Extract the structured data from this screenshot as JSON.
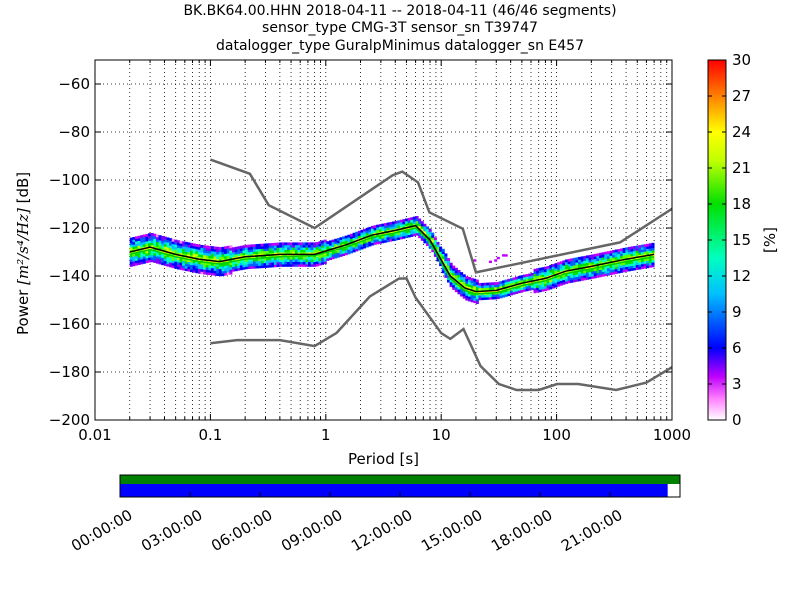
{
  "title": {
    "line1": "BK.BK64.00.HHN   2018-04-11 -- 2018-04-11  (46/46 segments)",
    "line2": "sensor_type CMG-3T sensor_sn T39747",
    "line3": "datalogger_type GuralpMinimus datalogger_sn E457"
  },
  "colorbar": {
    "label": "[%]",
    "ticks": [
      "0",
      "3",
      "6",
      "9",
      "12",
      "15",
      "18",
      "21",
      "24",
      "27",
      "30"
    ],
    "range": [
      0,
      30
    ]
  },
  "chart_data": {
    "type": "heatmap",
    "xlabel": "Period [s]",
    "ylabel_prefix": "Power ",
    "ylabel_unit": "[m²/s⁴/Hz]",
    "ylabel_suffix": " [dB]",
    "xscale": "log",
    "xlim": [
      0.01,
      1000
    ],
    "ylim": [
      -200,
      -50
    ],
    "xticks": [
      {
        "v": 0.01,
        "label": "0.01"
      },
      {
        "v": 0.1,
        "label": "0.1"
      },
      {
        "v": 1,
        "label": "1"
      },
      {
        "v": 10,
        "label": "10"
      },
      {
        "v": 100,
        "label": "100"
      },
      {
        "v": 1000,
        "label": "1000"
      }
    ],
    "yticks": [
      {
        "v": -60,
        "label": "−60"
      },
      {
        "v": -80,
        "label": "−80"
      },
      {
        "v": -100,
        "label": "−100"
      },
      {
        "v": -120,
        "label": "−120"
      },
      {
        "v": -140,
        "label": "−140"
      },
      {
        "v": -160,
        "label": "−160"
      },
      {
        "v": -180,
        "label": "−180"
      },
      {
        "v": -200,
        "label": "−200"
      }
    ],
    "grid": true,
    "noise_models": [
      {
        "name": "high-noise-model",
        "points": [
          [
            0.1,
            -91.5
          ],
          [
            0.22,
            -97.4
          ],
          [
            0.32,
            -110.5
          ],
          [
            0.8,
            -120
          ],
          [
            3.8,
            -98
          ],
          [
            4.6,
            -96.5
          ],
          [
            6.3,
            -101
          ],
          [
            7.9,
            -113.5
          ],
          [
            15.4,
            -120.3
          ],
          [
            20,
            -138.5
          ],
          [
            354,
            -126
          ],
          [
            1000,
            -112
          ]
        ]
      },
      {
        "name": "low-noise-model",
        "points": [
          [
            0.1,
            -168
          ],
          [
            0.17,
            -166.7
          ],
          [
            0.4,
            -166.7
          ],
          [
            0.8,
            -169.2
          ],
          [
            1.24,
            -163.7
          ],
          [
            2.4,
            -148.6
          ],
          [
            4.3,
            -141.1
          ],
          [
            5,
            -141
          ],
          [
            6,
            -149
          ],
          [
            10,
            -163.8
          ],
          [
            12,
            -166.2
          ],
          [
            15.6,
            -162.1
          ],
          [
            21.9,
            -177.5
          ],
          [
            31.6,
            -185
          ],
          [
            45,
            -187.5
          ],
          [
            70,
            -187.5
          ],
          [
            101,
            -185
          ],
          [
            154,
            -185
          ],
          [
            328,
            -187.5
          ],
          [
            600,
            -184.4
          ],
          [
            1000,
            -178
          ]
        ]
      }
    ],
    "mode_curve": [
      [
        0.02,
        -130
      ],
      [
        0.03,
        -128
      ],
      [
        0.05,
        -131
      ],
      [
        0.08,
        -133
      ],
      [
        0.12,
        -134
      ],
      [
        0.2,
        -132
      ],
      [
        0.4,
        -131
      ],
      [
        0.8,
        -131
      ],
      [
        1.5,
        -127
      ],
      [
        2.5,
        -123
      ],
      [
        4,
        -121
      ],
      [
        6,
        -119
      ],
      [
        8,
        -125
      ],
      [
        12,
        -140
      ],
      [
        16,
        -145
      ],
      [
        20,
        -146.5
      ],
      [
        30,
        -146
      ],
      [
        50,
        -143
      ],
      [
        80,
        -141
      ],
      [
        120,
        -138
      ],
      [
        200,
        -136
      ],
      [
        400,
        -133
      ],
      [
        700,
        -131
      ]
    ],
    "mean_curve": [
      [
        0.02,
        -131
      ],
      [
        0.03,
        -129
      ],
      [
        0.05,
        -132
      ],
      [
        0.08,
        -134
      ],
      [
        0.12,
        -135
      ],
      [
        0.2,
        -133
      ],
      [
        0.4,
        -132
      ],
      [
        0.8,
        -131.5
      ],
      [
        1.5,
        -128
      ],
      [
        2.5,
        -124
      ],
      [
        4,
        -122
      ],
      [
        6,
        -120
      ],
      [
        8,
        -126
      ],
      [
        12,
        -141
      ],
      [
        16,
        -146
      ],
      [
        20,
        -147.5
      ],
      [
        30,
        -147
      ],
      [
        50,
        -144
      ],
      [
        80,
        -142
      ],
      [
        120,
        -139
      ],
      [
        200,
        -137
      ],
      [
        400,
        -134
      ],
      [
        700,
        -132
      ]
    ]
  },
  "timeline": {
    "labels": [
      "00:00:00",
      "03:00:00",
      "06:00:00",
      "09:00:00",
      "12:00:00",
      "15:00:00",
      "18:00:00",
      "21:00:00"
    ],
    "green_coverage": 1.0,
    "blue_coverage": 0.978,
    "colors": {
      "data": "#008000",
      "segments": "#0000ff"
    }
  }
}
